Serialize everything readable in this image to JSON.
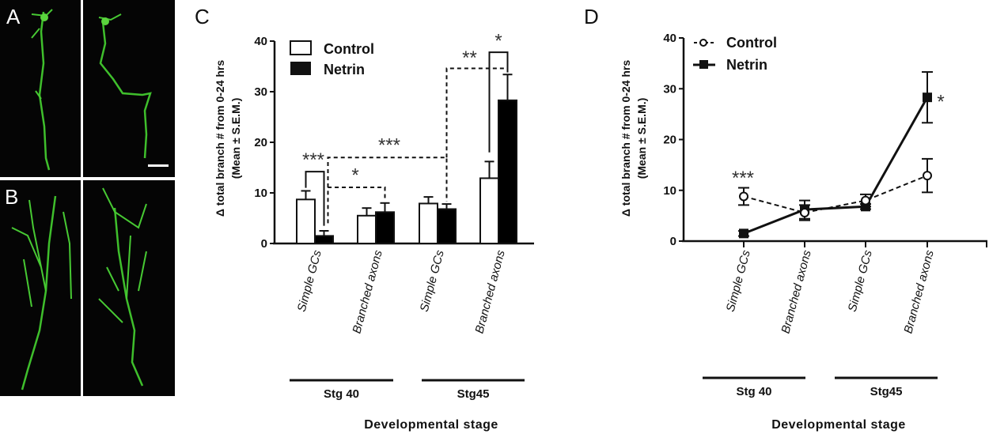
{
  "panels": {
    "A": {
      "label": "A",
      "description": "Simple growth cones micrographs (green fluorescence)"
    },
    "B": {
      "label": "B",
      "description": "Branched axons micrographs (green fluorescence)"
    }
  },
  "chart_data": [
    {
      "panel": "C",
      "type": "bar",
      "title": "",
      "categories": [
        "Simple GCs",
        "Branched axons",
        "Simple GCs",
        "Branched axons"
      ],
      "groups": [
        {
          "label": "Stg 40",
          "categories": [
            0,
            1
          ]
        },
        {
          "label": "Stg45",
          "categories": [
            2,
            3
          ]
        }
      ],
      "series": [
        {
          "name": "Control",
          "fill": "#ffffff",
          "values": [
            8.7,
            5.5,
            7.9,
            12.9
          ],
          "sem": [
            1.7,
            1.5,
            1.3,
            3.3
          ]
        },
        {
          "name": "Netrin",
          "fill": "#000000",
          "values": [
            1.5,
            6.2,
            6.8,
            28.3
          ],
          "sem": [
            1.0,
            1.8,
            1.0,
            5.1
          ]
        }
      ],
      "ylabel_line1": "Δ total branch # from 0-24 hrs",
      "ylabel_line2": "(Mean ± S.E.M.)",
      "xlabel": "Developmental stage",
      "ylim": [
        0,
        40
      ],
      "yticks": [
        0,
        10,
        20,
        30,
        40
      ],
      "legend": {
        "position": "top-left",
        "entries": [
          "Control",
          "Netrin"
        ]
      },
      "annotations": [
        {
          "text": "***",
          "type": "solid-bracket",
          "between": "Simple GCs Stg40 Control vs Netrin"
        },
        {
          "text": "*",
          "type": "dashed-bracket",
          "between": "Netrin Simple GCs Stg40 vs Netrin Branched axons Stg40"
        },
        {
          "text": "***",
          "type": "dashed-bracket",
          "between": "Netrin Simple GCs Stg40 vs Netrin Simple GCs Stg45"
        },
        {
          "text": "**",
          "type": "dashed-bracket",
          "between": "Netrin Simple GCs Stg45 vs Netrin Branched axons Stg45"
        },
        {
          "text": "*",
          "type": "solid-bracket",
          "between": "Branched axons Stg45 Control vs Netrin"
        }
      ]
    },
    {
      "panel": "D",
      "type": "line",
      "title": "",
      "categories": [
        "Simple GCs",
        "Branched axons",
        "Simple GCs",
        "Branched axons"
      ],
      "groups": [
        {
          "label": "Stg 40",
          "categories": [
            0,
            1
          ]
        },
        {
          "label": "Stg45",
          "categories": [
            2,
            3
          ]
        }
      ],
      "series": [
        {
          "name": "Control",
          "style": "dashed",
          "marker": "open-circle",
          "values": [
            8.8,
            5.6,
            8.0,
            12.9
          ],
          "sem": [
            1.7,
            1.5,
            1.2,
            3.3
          ]
        },
        {
          "name": "Netrin",
          "style": "solid",
          "marker": "filled-square",
          "values": [
            1.5,
            6.2,
            6.8,
            28.3
          ],
          "sem": [
            0.5,
            1.8,
            0.5,
            5.0
          ]
        }
      ],
      "ylabel_line1": "Δ total branch # from 0-24 hrs",
      "ylabel_line2": "(Mean ± S.E.M.)",
      "xlabel": "Developmental stage",
      "ylim": [
        0,
        40
      ],
      "yticks": [
        0,
        10,
        20,
        30,
        40
      ],
      "legend": {
        "position": "top-left",
        "entries": [
          "Control",
          "Netrin"
        ]
      },
      "annotations": [
        {
          "text": "***",
          "at": "Simple GCs Stg40"
        },
        {
          "text": "*",
          "at": "Branched axons Stg45 Netrin"
        }
      ]
    }
  ]
}
